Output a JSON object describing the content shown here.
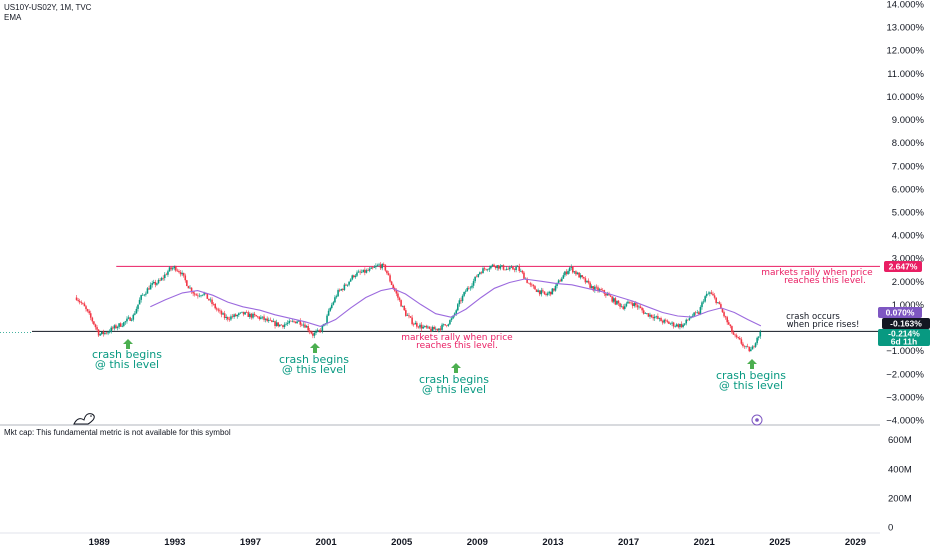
{
  "header": {
    "symbol_line": "US10Y-US02Y, 1M, TVC",
    "indicator": "EMA"
  },
  "mktcap_note": "Mkt cap: This fundamental metric is not available for this symbol",
  "badges": {
    "resistance": "2.647%",
    "ema": "0.070%",
    "support": "-0.163%",
    "last": "-0.214%",
    "countdown": "6d 11h"
  },
  "annotations": {
    "crash1_line1": "crash begins",
    "crash1_line2": "@ this level",
    "crash2_line1": "crash begins",
    "crash2_line2": "@ this level",
    "crash3_line1": "crash begins",
    "crash3_line2": "@ this level",
    "crash4_line1": "crash begins",
    "crash4_line2": "@ this level",
    "rally1_line1": "markets rally when price",
    "rally1_line2": "reaches this level.",
    "rally2_line1": "markets rally when price",
    "rally2_line2": "reaches this level.",
    "occurs_line1": "crash occurs",
    "occurs_line2": "when price rises!"
  },
  "colors": {
    "up": "#089981",
    "down": "#f23645",
    "ema": "#9c6ade",
    "resistance": "#e91e63",
    "support": "#131722",
    "badge_purple": "#7e57c2"
  },
  "chart_data": {
    "type": "candlestick",
    "title": "",
    "y_unit": "%",
    "ylim": [
      -4,
      14
    ],
    "y_ticks": [
      "14.000%",
      "13.000%",
      "12.000%",
      "11.000%",
      "10.000%",
      "9.000%",
      "8.000%",
      "7.000%",
      "6.000%",
      "5.000%",
      "4.000%",
      "3.000%",
      "2.000%",
      "1.000%",
      "−1.000%",
      "−2.000%",
      "−3.000%",
      "−4.000%"
    ],
    "y_tick_values": [
      14,
      13,
      12,
      11,
      10,
      9,
      8,
      7,
      6,
      5,
      4,
      3,
      2,
      1,
      -1,
      -2,
      -3,
      -4
    ],
    "x_ticks": [
      "1989",
      "1993",
      "1997",
      "2001",
      "2005",
      "2009",
      "2013",
      "2017",
      "2021",
      "2025",
      "2029"
    ],
    "x_tick_values": [
      1989,
      1993,
      1997,
      2001,
      2005,
      2009,
      2013,
      2017,
      2021,
      2025,
      2029
    ],
    "xlim": [
      1983.75,
      2030.3
    ],
    "resistance_level": 2.647,
    "support_level": -0.163,
    "ema_last": 0.07,
    "price_last": -0.214,
    "price_path": [
      [
        1987.8,
        1.3
      ],
      [
        1988.2,
        0.9
      ],
      [
        1988.7,
        0.2
      ],
      [
        1989.0,
        -0.3
      ],
      [
        1989.4,
        -0.2
      ],
      [
        1989.8,
        0.0
      ],
      [
        1990.3,
        0.2
      ],
      [
        1990.8,
        0.5
      ],
      [
        1991.2,
        1.3
      ],
      [
        1991.7,
        1.8
      ],
      [
        1992.2,
        2.0
      ],
      [
        1992.7,
        2.5
      ],
      [
        1993.0,
        2.6
      ],
      [
        1993.3,
        2.4
      ],
      [
        1993.7,
        1.8
      ],
      [
        1994.1,
        1.4
      ],
      [
        1994.5,
        1.5
      ],
      [
        1994.9,
        1.1
      ],
      [
        1995.3,
        0.7
      ],
      [
        1995.7,
        0.4
      ],
      [
        1996.2,
        0.5
      ],
      [
        1996.6,
        0.6
      ],
      [
        1997.1,
        0.5
      ],
      [
        1997.6,
        0.4
      ],
      [
        1998.1,
        0.2
      ],
      [
        1998.6,
        0.1
      ],
      [
        1999.1,
        0.2
      ],
      [
        1999.5,
        0.3
      ],
      [
        1999.9,
        0.1
      ],
      [
        2000.3,
        -0.3
      ],
      [
        2000.6,
        -0.2
      ],
      [
        2000.9,
        0.1
      ],
      [
        2001.2,
        0.8
      ],
      [
        2001.6,
        1.5
      ],
      [
        2002.0,
        1.8
      ],
      [
        2002.5,
        2.3
      ],
      [
        2003.0,
        2.4
      ],
      [
        2003.4,
        2.5
      ],
      [
        2003.8,
        2.7
      ],
      [
        2004.1,
        2.6
      ],
      [
        2004.4,
        2.0
      ],
      [
        2004.8,
        1.3
      ],
      [
        2005.2,
        0.6
      ],
      [
        2005.6,
        0.2
      ],
      [
        2006.0,
        0.05
      ],
      [
        2006.5,
        -0.1
      ],
      [
        2006.9,
        -0.05
      ],
      [
        2007.3,
        0.1
      ],
      [
        2007.7,
        0.4
      ],
      [
        2008.0,
        1.0
      ],
      [
        2008.4,
        1.6
      ],
      [
        2008.8,
        2.0
      ],
      [
        2009.1,
        2.4
      ],
      [
        2009.5,
        2.6
      ],
      [
        2009.9,
        2.7
      ],
      [
        2010.3,
        2.6
      ],
      [
        2010.7,
        2.5
      ],
      [
        2011.1,
        2.6
      ],
      [
        2011.4,
        2.3
      ],
      [
        2011.8,
        1.8
      ],
      [
        2012.2,
        1.6
      ],
      [
        2012.6,
        1.4
      ],
      [
        2013.0,
        1.6
      ],
      [
        2013.5,
        2.2
      ],
      [
        2013.9,
        2.6
      ],
      [
        2014.3,
        2.3
      ],
      [
        2014.7,
        2.0
      ],
      [
        2015.1,
        1.7
      ],
      [
        2015.5,
        1.6
      ],
      [
        2015.9,
        1.4
      ],
      [
        2016.3,
        1.1
      ],
      [
        2016.7,
        0.9
      ],
      [
        2017.1,
        1.1
      ],
      [
        2017.5,
        0.9
      ],
      [
        2017.9,
        0.6
      ],
      [
        2018.3,
        0.5
      ],
      [
        2018.7,
        0.3
      ],
      [
        2019.1,
        0.2
      ],
      [
        2019.5,
        0.1
      ],
      [
        2019.9,
        0.1
      ],
      [
        2020.3,
        0.5
      ],
      [
        2020.7,
        0.6
      ],
      [
        2021.0,
        1.3
      ],
      [
        2021.3,
        1.5
      ],
      [
        2021.7,
        1.1
      ],
      [
        2022.0,
        0.6
      ],
      [
        2022.3,
        0.1
      ],
      [
        2022.6,
        -0.4
      ],
      [
        2022.9,
        -0.6
      ],
      [
        2023.2,
        -0.9
      ],
      [
        2023.5,
        -1.0
      ],
      [
        2023.8,
        -0.4
      ],
      [
        2024.0,
        -0.214
      ]
    ],
    "ema_path": [
      [
        1991.7,
        0.9
      ],
      [
        1992.5,
        1.2
      ],
      [
        1993.4,
        1.5
      ],
      [
        1994.2,
        1.6
      ],
      [
        1995.0,
        1.4
      ],
      [
        1995.8,
        1.1
      ],
      [
        1996.6,
        0.9
      ],
      [
        1997.5,
        0.75
      ],
      [
        1998.3,
        0.55
      ],
      [
        1999.1,
        0.4
      ],
      [
        1999.9,
        0.25
      ],
      [
        2000.7,
        0.05
      ],
      [
        2001.5,
        0.35
      ],
      [
        2002.3,
        0.85
      ],
      [
        2003.1,
        1.3
      ],
      [
        2003.9,
        1.6
      ],
      [
        2004.5,
        1.7
      ],
      [
        2005.2,
        1.45
      ],
      [
        2006.0,
        1.0
      ],
      [
        2006.8,
        0.6
      ],
      [
        2007.6,
        0.45
      ],
      [
        2008.4,
        0.8
      ],
      [
        2009.2,
        1.3
      ],
      [
        2009.9,
        1.7
      ],
      [
        2010.7,
        1.95
      ],
      [
        2011.5,
        2.1
      ],
      [
        2012.4,
        2.0
      ],
      [
        2013.2,
        1.9
      ],
      [
        2014.0,
        1.85
      ],
      [
        2014.8,
        1.7
      ],
      [
        2015.6,
        1.55
      ],
      [
        2016.4,
        1.35
      ],
      [
        2017.2,
        1.15
      ],
      [
        2018.0,
        0.9
      ],
      [
        2018.8,
        0.65
      ],
      [
        2019.6,
        0.5
      ],
      [
        2020.4,
        0.45
      ],
      [
        2021.2,
        0.7
      ],
      [
        2021.9,
        0.85
      ],
      [
        2022.6,
        0.65
      ],
      [
        2023.3,
        0.35
      ],
      [
        2024.0,
        0.07
      ]
    ]
  },
  "volume_axis": {
    "ticks": [
      "600M",
      "400M",
      "200M",
      "0"
    ],
    "values": [
      600,
      400,
      200,
      0
    ],
    "max": 680
  }
}
